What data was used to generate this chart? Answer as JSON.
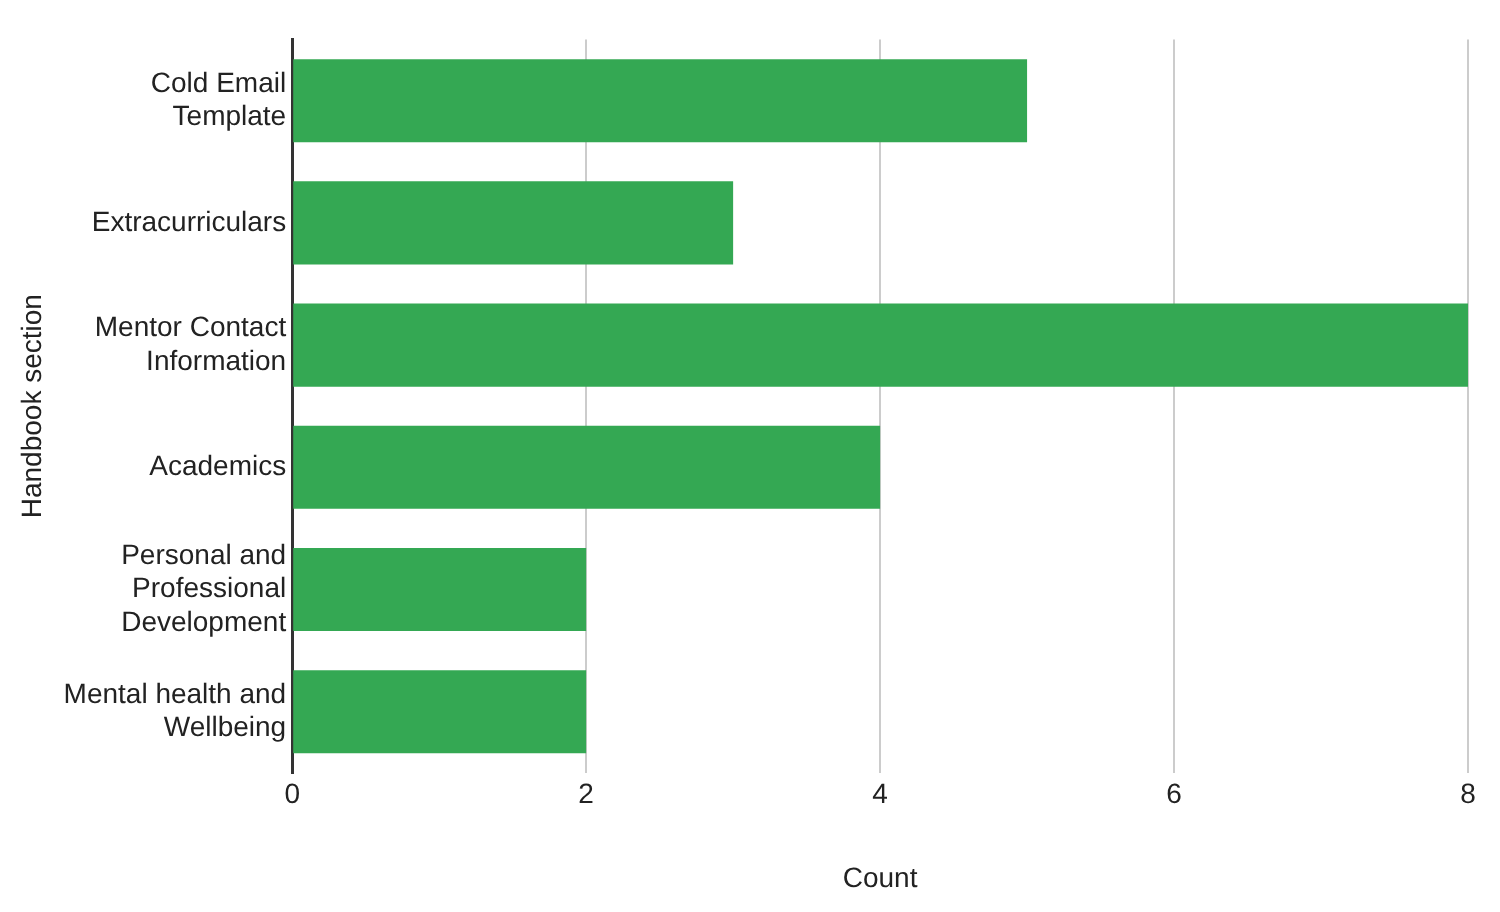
{
  "chart_data": {
    "type": "bar",
    "orientation": "horizontal",
    "xlabel": "Count",
    "ylabel": "Handbook section",
    "categories": [
      "Cold Email Template",
      "Extracurriculars",
      "Mentor Contact Information",
      "Academics",
      "Personal and Professional Development",
      "Mental health and Wellbeing"
    ],
    "values": [
      5,
      3,
      8,
      4,
      2,
      2
    ],
    "color": "#34a853",
    "xlim": [
      0,
      8
    ],
    "xticks": [
      0,
      2,
      4,
      6,
      8
    ],
    "grid": "x",
    "legend": false
  }
}
